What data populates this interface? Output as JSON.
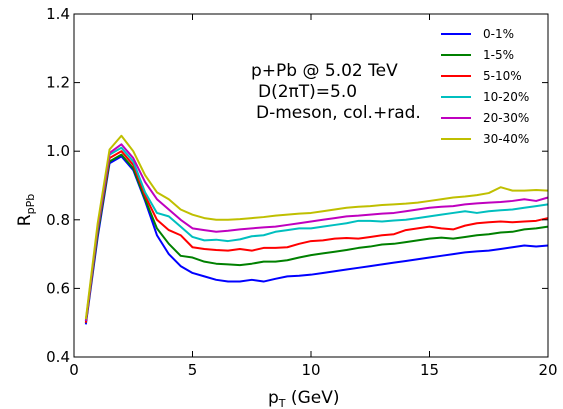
{
  "chart_data": {
    "type": "line",
    "xlabel": "p_T (GeV)",
    "xlabel_main": "p",
    "xlabel_sub": "T",
    "xlabel_unit": " (GeV)",
    "ylabel": "R_pPb",
    "ylabel_main": "R",
    "ylabel_sub": "pPb",
    "xlim": [
      0,
      20
    ],
    "ylim": [
      0.4,
      1.4
    ],
    "xticks": [
      0,
      5,
      10,
      15,
      20
    ],
    "yticks": [
      0.4,
      0.6,
      0.8,
      1.0,
      1.2,
      1.4
    ],
    "xtick_labels": [
      "0",
      "5",
      "10",
      "15",
      "20"
    ],
    "ytick_labels": [
      "0.4",
      "0.6",
      "0.8",
      "1.0",
      "1.2",
      "1.4"
    ],
    "legend_position": "top-right",
    "annotations": [
      "p+Pb @ 5.02 TeV",
      "D(2πT)=5.0",
      "D-meson, col.+rad."
    ],
    "x": [
      0.5,
      1.0,
      1.5,
      2.0,
      2.5,
      3.0,
      3.5,
      4.0,
      4.5,
      5.0,
      5.5,
      6.0,
      6.5,
      7.0,
      7.5,
      8.0,
      8.5,
      9.0,
      9.5,
      10.0,
      10.5,
      11.0,
      11.5,
      12.0,
      12.5,
      13.0,
      13.5,
      14.0,
      14.5,
      15.0,
      15.5,
      16.0,
      16.5,
      17.0,
      17.5,
      18.0,
      18.5,
      19.0,
      19.5,
      20.0
    ],
    "series": [
      {
        "name": "0-1%",
        "color": "#0000ff",
        "values": [
          0.495,
          0.75,
          0.965,
          0.985,
          0.945,
          0.855,
          0.755,
          0.7,
          0.665,
          0.645,
          0.635,
          0.625,
          0.62,
          0.62,
          0.625,
          0.62,
          0.628,
          0.635,
          0.637,
          0.64,
          0.645,
          0.65,
          0.655,
          0.66,
          0.665,
          0.67,
          0.675,
          0.68,
          0.685,
          0.69,
          0.695,
          0.7,
          0.705,
          0.708,
          0.71,
          0.715,
          0.72,
          0.725,
          0.722,
          0.725
        ]
      },
      {
        "name": "1-5%",
        "color": "#008000",
        "values": [
          0.5,
          0.76,
          0.97,
          0.99,
          0.95,
          0.86,
          0.775,
          0.73,
          0.695,
          0.69,
          0.678,
          0.672,
          0.67,
          0.668,
          0.672,
          0.678,
          0.678,
          0.682,
          0.69,
          0.697,
          0.702,
          0.707,
          0.712,
          0.718,
          0.722,
          0.728,
          0.73,
          0.735,
          0.74,
          0.745,
          0.748,
          0.745,
          0.75,
          0.755,
          0.758,
          0.763,
          0.765,
          0.772,
          0.775,
          0.78
        ]
      },
      {
        "name": "5-10%",
        "color": "#ff0000",
        "values": [
          0.5,
          0.77,
          0.98,
          1.0,
          0.96,
          0.87,
          0.8,
          0.77,
          0.755,
          0.72,
          0.715,
          0.712,
          0.71,
          0.715,
          0.71,
          0.718,
          0.718,
          0.72,
          0.73,
          0.738,
          0.74,
          0.745,
          0.747,
          0.745,
          0.75,
          0.755,
          0.758,
          0.77,
          0.775,
          0.78,
          0.775,
          0.772,
          0.783,
          0.79,
          0.793,
          0.795,
          0.793,
          0.795,
          0.797,
          0.805
        ]
      },
      {
        "name": "10-20%",
        "color": "#00bfbf",
        "values": [
          0.505,
          0.775,
          0.99,
          1.01,
          0.97,
          0.88,
          0.82,
          0.81,
          0.78,
          0.75,
          0.74,
          0.742,
          0.738,
          0.743,
          0.752,
          0.755,
          0.765,
          0.77,
          0.775,
          0.775,
          0.78,
          0.785,
          0.79,
          0.797,
          0.797,
          0.795,
          0.798,
          0.8,
          0.805,
          0.81,
          0.815,
          0.82,
          0.825,
          0.82,
          0.825,
          0.828,
          0.83,
          0.835,
          0.84,
          0.845
        ]
      },
      {
        "name": "20-30%",
        "color": "#bf00bf",
        "values": [
          0.505,
          0.78,
          0.995,
          1.02,
          0.98,
          0.91,
          0.86,
          0.83,
          0.8,
          0.775,
          0.77,
          0.765,
          0.768,
          0.772,
          0.775,
          0.778,
          0.78,
          0.785,
          0.79,
          0.795,
          0.8,
          0.805,
          0.81,
          0.812,
          0.815,
          0.818,
          0.82,
          0.825,
          0.83,
          0.835,
          0.838,
          0.84,
          0.845,
          0.848,
          0.85,
          0.852,
          0.855,
          0.86,
          0.855,
          0.865
        ]
      },
      {
        "name": "30-40%",
        "color": "#bfbf00",
        "values": [
          0.51,
          0.79,
          1.005,
          1.045,
          1.0,
          0.93,
          0.88,
          0.86,
          0.83,
          0.815,
          0.805,
          0.8,
          0.8,
          0.802,
          0.805,
          0.808,
          0.812,
          0.815,
          0.818,
          0.82,
          0.825,
          0.83,
          0.835,
          0.838,
          0.84,
          0.843,
          0.845,
          0.847,
          0.85,
          0.855,
          0.86,
          0.865,
          0.868,
          0.872,
          0.878,
          0.895,
          0.885,
          0.885,
          0.887,
          0.885
        ]
      }
    ]
  }
}
